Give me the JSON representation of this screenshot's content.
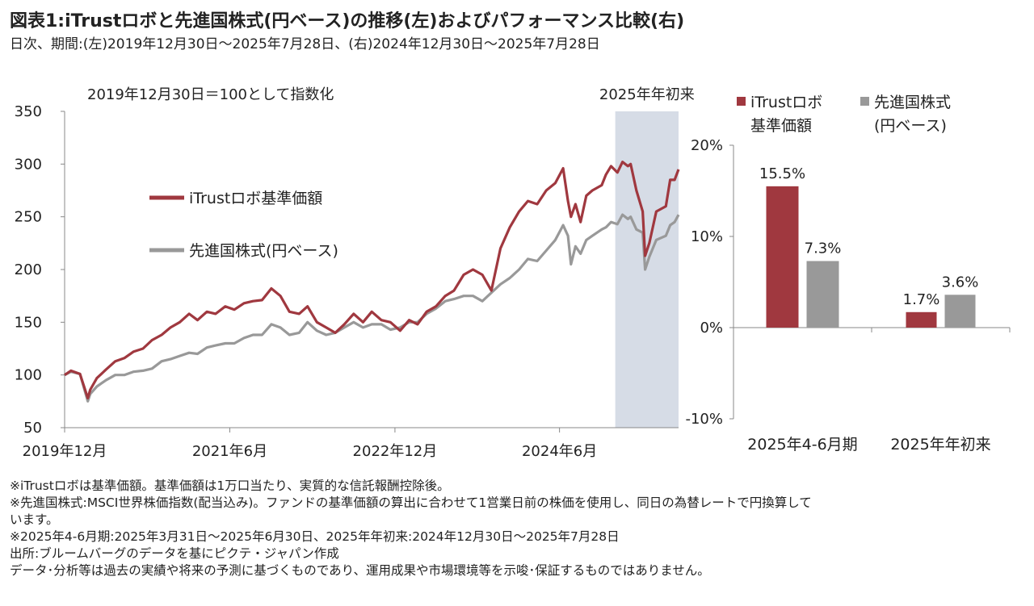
{
  "header": {
    "title": "図表1:iTrustロボと先進国株式(円ベース)の推移(左)およびパフォーマンス比較(右)",
    "subtitle": "日次、期間:(左)2019年12月30日～2025年7月28日、(右)2024年12月30日～2025年7月28日"
  },
  "colors": {
    "robo": "#a0383f",
    "dev": "#999999",
    "shade": "#d6dce6",
    "axis": "#888888"
  },
  "chart_data": [
    {
      "type": "line",
      "annotation": "2019年12月30日＝100として指数化",
      "shade_label": "2025年年初来",
      "shade_range": [
        "2024-12-30",
        "2025-07-28"
      ],
      "ylim": [
        50,
        350
      ],
      "yticks": [
        "50",
        "100",
        "150",
        "200",
        "250",
        "300",
        "350"
      ],
      "xticks": [
        {
          "date": "2019-12-30",
          "label": "2019年12月"
        },
        {
          "date": "2021-06-30",
          "label": "2021年6月"
        },
        {
          "date": "2022-12-30",
          "label": "2022年12月"
        },
        {
          "date": "2024-06-28",
          "label": "2024年6月"
        }
      ],
      "xrange": [
        "2019-12-30",
        "2025-07-28"
      ],
      "series": [
        {
          "name": "iTrustロボ基準価額",
          "points": [
            [
              "2019-12-30",
              100
            ],
            [
              "2020-01-20",
              104
            ],
            [
              "2020-02-19",
              101
            ],
            [
              "2020-03-16",
              78
            ],
            [
              "2020-03-24",
              86
            ],
            [
              "2020-04-15",
              97
            ],
            [
              "2020-05-15",
              105
            ],
            [
              "2020-06-15",
              113
            ],
            [
              "2020-07-15",
              116
            ],
            [
              "2020-08-14",
              122
            ],
            [
              "2020-09-15",
              125
            ],
            [
              "2020-10-15",
              133
            ],
            [
              "2020-11-16",
              138
            ],
            [
              "2020-12-15",
              145
            ],
            [
              "2021-01-15",
              150
            ],
            [
              "2021-02-15",
              158
            ],
            [
              "2021-03-15",
              152
            ],
            [
              "2021-04-15",
              160
            ],
            [
              "2021-05-14",
              158
            ],
            [
              "2021-06-15",
              165
            ],
            [
              "2021-07-15",
              162
            ],
            [
              "2021-08-16",
              168
            ],
            [
              "2021-09-15",
              170
            ],
            [
              "2021-10-15",
              171
            ],
            [
              "2021-11-15",
              182
            ],
            [
              "2021-12-15",
              175
            ],
            [
              "2022-01-14",
              160
            ],
            [
              "2022-02-15",
              158
            ],
            [
              "2022-03-15",
              165
            ],
            [
              "2022-04-15",
              150
            ],
            [
              "2022-05-16",
              145
            ],
            [
              "2022-06-15",
              140
            ],
            [
              "2022-07-15",
              148
            ],
            [
              "2022-08-15",
              158
            ],
            [
              "2022-09-15",
              150
            ],
            [
              "2022-10-14",
              160
            ],
            [
              "2022-11-15",
              152
            ],
            [
              "2022-12-15",
              150
            ],
            [
              "2023-01-16",
              142
            ],
            [
              "2023-02-15",
              152
            ],
            [
              "2023-03-15",
              148
            ],
            [
              "2023-04-14",
              160
            ],
            [
              "2023-05-15",
              165
            ],
            [
              "2023-06-15",
              175
            ],
            [
              "2023-07-14",
              180
            ],
            [
              "2023-08-15",
              195
            ],
            [
              "2023-09-15",
              200
            ],
            [
              "2023-10-16",
              195
            ],
            [
              "2023-11-15",
              180
            ],
            [
              "2023-12-15",
              220
            ],
            [
              "2024-01-15",
              240
            ],
            [
              "2024-02-15",
              255
            ],
            [
              "2024-03-15",
              265
            ],
            [
              "2024-04-15",
              262
            ],
            [
              "2024-05-15",
              275
            ],
            [
              "2024-06-14",
              282
            ],
            [
              "2024-07-10",
              296
            ],
            [
              "2024-07-26",
              265
            ],
            [
              "2024-08-05",
              250
            ],
            [
              "2024-08-20",
              262
            ],
            [
              "2024-09-06",
              245
            ],
            [
              "2024-09-25",
              270
            ],
            [
              "2024-10-15",
              275
            ],
            [
              "2024-11-15",
              280
            ],
            [
              "2024-11-29",
              290
            ],
            [
              "2024-12-16",
              298
            ],
            [
              "2025-01-06",
              292
            ],
            [
              "2025-01-23",
              302
            ],
            [
              "2025-02-10",
              298
            ],
            [
              "2025-02-19",
              300
            ],
            [
              "2025-03-10",
              275
            ],
            [
              "2025-03-31",
              255
            ],
            [
              "2025-04-08",
              213
            ],
            [
              "2025-04-22",
              225
            ],
            [
              "2025-05-15",
              255
            ],
            [
              "2025-06-16",
              260
            ],
            [
              "2025-06-30",
              285
            ],
            [
              "2025-07-15",
              285
            ],
            [
              "2025-07-28",
              295
            ]
          ]
        },
        {
          "name": "先進国株式(円ベース)",
          "points": [
            [
              "2019-12-30",
              100
            ],
            [
              "2020-01-20",
              103
            ],
            [
              "2020-02-19",
              101
            ],
            [
              "2020-03-16",
              75
            ],
            [
              "2020-03-24",
              82
            ],
            [
              "2020-04-15",
              89
            ],
            [
              "2020-05-15",
              95
            ],
            [
              "2020-06-15",
              100
            ],
            [
              "2020-07-15",
              100
            ],
            [
              "2020-08-14",
              103
            ],
            [
              "2020-09-15",
              104
            ],
            [
              "2020-10-15",
              106
            ],
            [
              "2020-11-16",
              113
            ],
            [
              "2020-12-15",
              115
            ],
            [
              "2021-01-15",
              118
            ],
            [
              "2021-02-15",
              121
            ],
            [
              "2021-03-15",
              120
            ],
            [
              "2021-04-15",
              126
            ],
            [
              "2021-05-14",
              128
            ],
            [
              "2021-06-15",
              130
            ],
            [
              "2021-07-15",
              130
            ],
            [
              "2021-08-16",
              135
            ],
            [
              "2021-09-15",
              138
            ],
            [
              "2021-10-15",
              138
            ],
            [
              "2021-11-15",
              148
            ],
            [
              "2021-12-15",
              145
            ],
            [
              "2022-01-14",
              138
            ],
            [
              "2022-02-15",
              140
            ],
            [
              "2022-03-15",
              150
            ],
            [
              "2022-04-15",
              142
            ],
            [
              "2022-05-16",
              138
            ],
            [
              "2022-06-15",
              140
            ],
            [
              "2022-07-15",
              145
            ],
            [
              "2022-08-15",
              150
            ],
            [
              "2022-09-15",
              145
            ],
            [
              "2022-10-14",
              148
            ],
            [
              "2022-11-15",
              148
            ],
            [
              "2022-12-15",
              143
            ],
            [
              "2023-01-16",
              145
            ],
            [
              "2023-02-15",
              150
            ],
            [
              "2023-03-15",
              150
            ],
            [
              "2023-04-14",
              158
            ],
            [
              "2023-05-15",
              163
            ],
            [
              "2023-06-15",
              170
            ],
            [
              "2023-07-14",
              172
            ],
            [
              "2023-08-15",
              175
            ],
            [
              "2023-09-15",
              175
            ],
            [
              "2023-10-16",
              170
            ],
            [
              "2023-11-15",
              178
            ],
            [
              "2023-12-15",
              186
            ],
            [
              "2024-01-15",
              192
            ],
            [
              "2024-02-15",
              200
            ],
            [
              "2024-03-15",
              210
            ],
            [
              "2024-04-15",
              208
            ],
            [
              "2024-05-15",
              218
            ],
            [
              "2024-06-14",
              228
            ],
            [
              "2024-07-10",
              242
            ],
            [
              "2024-07-26",
              232
            ],
            [
              "2024-08-05",
              205
            ],
            [
              "2024-08-20",
              222
            ],
            [
              "2024-09-06",
              215
            ],
            [
              "2024-09-25",
              228
            ],
            [
              "2024-10-15",
              232
            ],
            [
              "2024-11-15",
              238
            ],
            [
              "2024-11-29",
              240
            ],
            [
              "2024-12-16",
              245
            ],
            [
              "2025-01-06",
              243
            ],
            [
              "2025-01-23",
              252
            ],
            [
              "2025-02-10",
              248
            ],
            [
              "2025-02-19",
              250
            ],
            [
              "2025-03-10",
              238
            ],
            [
              "2025-03-31",
              235
            ],
            [
              "2025-04-08",
              200
            ],
            [
              "2025-04-22",
              212
            ],
            [
              "2025-05-15",
              228
            ],
            [
              "2025-06-16",
              232
            ],
            [
              "2025-06-30",
              242
            ],
            [
              "2025-07-15",
              245
            ],
            [
              "2025-07-28",
              252
            ]
          ]
        }
      ]
    },
    {
      "type": "bar",
      "categories": [
        "2025年4-6月期",
        "2025年年初来"
      ],
      "ylim": [
        -10,
        20
      ],
      "yticks": [
        "-10%",
        "0%",
        "10%",
        "20%"
      ],
      "series": [
        {
          "name": "iTrustロボ基準価額",
          "values": [
            15.5,
            1.7
          ],
          "labels": [
            "15.5%",
            "1.7%"
          ]
        },
        {
          "name": "先進国株式(円ベース)",
          "values": [
            7.3,
            3.6
          ],
          "labels": [
            "7.3%",
            "3.6%"
          ]
        }
      ],
      "legend": [
        {
          "line1": "iTrustロボ",
          "line2": "基準価額"
        },
        {
          "line1": "先進国株式",
          "line2": "(円ベース)"
        }
      ]
    }
  ],
  "notes": [
    "※iTrustロボは基準価額。基準価額は1万口当たり、実質的な信託報酬控除後。",
    "※先進国株式:MSCI世界株価指数(配当込み)。ファンドの基準価額の算出に合わせて1営業日前の株価を使用し、同日の為替レートで円換算して",
    "います。",
    "※2025年4-6月期:2025年3月31日～2025年6月30日、2025年年初来:2024年12月30日～2025年7月28日",
    "出所:ブルームバーグのデータを基にピクテ・ジャパン作成",
    "データ･分析等は過去の実績や将来の予測に基づくものであり、運用成果や市場環境等を示唆･保証するものではありません。"
  ]
}
